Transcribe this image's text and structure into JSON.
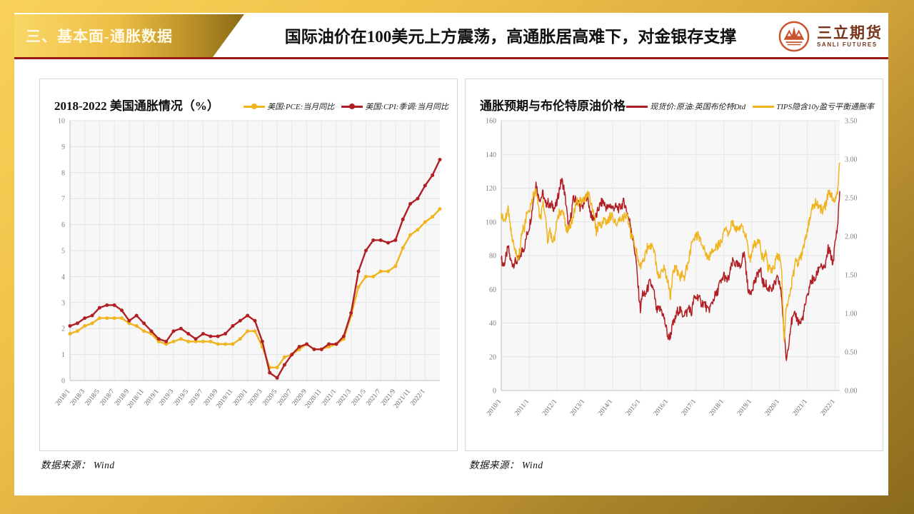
{
  "header": {
    "section_label": "三、基本面-通胀数据",
    "title": "国际油价在100美元上方震荡，高通胀居高难下，对金银存支撑",
    "logo": {
      "name_cn": "三立期货",
      "name_en": "SANLI FUTURES"
    }
  },
  "source_note": {
    "label": "数据来源：",
    "value": "Wind"
  },
  "colors": {
    "brand_gold": "#EFC04A",
    "banner_text": "#FFF9E4",
    "separator_red": "#9B1B13",
    "logo_orange": "#C8552C",
    "logo_text_brown": "#77341B",
    "series_gold": "#F0B41E",
    "series_red": "#B01F24",
    "plot_background": "#F7F7F7",
    "gridline": "#E2E2E2"
  },
  "chart_data": [
    {
      "type": "line",
      "title": "2018-2022 美国通胀情况（%）",
      "xlabel": "",
      "ylabel": "",
      "ylim": [
        0,
        10
      ],
      "ystep": 1,
      "y_decimals": 0,
      "grid": true,
      "legend_position": "top-right",
      "label_every": 2,
      "x_tick_labels": [
        "2018/1",
        "2018/3",
        "2018/5",
        "2018/7",
        "2018/9",
        "2018/11",
        "2019/1",
        "2019/3",
        "2019/5",
        "2019/7",
        "2019/9",
        "2019/11",
        "2020/1",
        "2020/3",
        "2020/5",
        "2020/7",
        "2020/9",
        "2020/11",
        "2021/1",
        "2021/3",
        "2021/5",
        "2021/7",
        "2021/9",
        "2021/11",
        "2022/1"
      ],
      "x_range_note": "monthly points 2018/1 - 2022/3",
      "series": [
        {
          "name": "美国:PCE:当月同比",
          "color": "#F0B41E",
          "marker": "circle",
          "values": [
            1.8,
            1.9,
            2.1,
            2.2,
            2.4,
            2.4,
            2.4,
            2.4,
            2.2,
            2.1,
            1.9,
            1.8,
            1.5,
            1.4,
            1.5,
            1.6,
            1.5,
            1.5,
            1.5,
            1.5,
            1.4,
            1.4,
            1.4,
            1.6,
            1.9,
            1.9,
            1.3,
            0.5,
            0.5,
            0.9,
            1.0,
            1.2,
            1.4,
            1.2,
            1.2,
            1.3,
            1.4,
            1.6,
            2.5,
            3.6,
            4.0,
            4.0,
            4.2,
            4.2,
            4.4,
            5.1,
            5.6,
            5.8,
            6.1,
            6.3,
            6.6
          ]
        },
        {
          "name": "美国:CPI:季调:当月同比",
          "color": "#B01F24",
          "marker": "circle",
          "values": [
            2.1,
            2.2,
            2.4,
            2.5,
            2.8,
            2.9,
            2.9,
            2.7,
            2.3,
            2.5,
            2.2,
            1.9,
            1.6,
            1.5,
            1.9,
            2.0,
            1.8,
            1.6,
            1.8,
            1.7,
            1.7,
            1.8,
            2.1,
            2.3,
            2.5,
            2.3,
            1.5,
            0.3,
            0.1,
            0.6,
            1.0,
            1.3,
            1.4,
            1.2,
            1.2,
            1.4,
            1.4,
            1.7,
            2.6,
            4.2,
            5.0,
            5.4,
            5.4,
            5.3,
            5.4,
            6.2,
            6.8,
            7.0,
            7.5,
            7.9,
            8.5
          ]
        }
      ]
    },
    {
      "type": "line",
      "title": "通胀预期与布伦特原油价格",
      "xlabel": "",
      "ylabel": "",
      "ylim_left": [
        0,
        160
      ],
      "ystep_left": 20,
      "y_decimals": 0,
      "ylim_right": [
        0,
        3.5
      ],
      "ystep_right": 0.5,
      "y2_decimals": 2,
      "grid": true,
      "legend_position": "top-right",
      "label_every": 12,
      "x_tick_labels": [
        "2010/1",
        "2011/1",
        "2012/1",
        "2013/1",
        "2014/1",
        "2015/1",
        "2016/1",
        "2017/1",
        "2018/1",
        "2019/1",
        "2020/1",
        "2021/1",
        "2022/1"
      ],
      "x_range_note": "monthly points 2010/1 - 2022/3",
      "series": [
        {
          "name": "现货价:原油:英国布伦特Dtd",
          "color": "#B01F24",
          "axis": "left",
          "values": [
            78,
            74,
            79,
            85,
            77,
            75,
            76,
            77,
            78,
            83,
            85,
            92,
            97,
            104,
            115,
            123,
            115,
            114,
            117,
            110,
            112,
            109,
            110,
            108,
            111,
            119,
            125,
            120,
            110,
            95,
            103,
            113,
            113,
            112,
            109,
            109,
            112,
            116,
            109,
            102,
            103,
            103,
            108,
            111,
            112,
            109,
            108,
            110,
            108,
            109,
            108,
            108,
            110,
            112,
            107,
            102,
            97,
            88,
            79,
            62,
            48,
            58,
            56,
            60,
            64,
            62,
            57,
            47,
            48,
            48,
            44,
            38,
            31,
            33,
            39,
            42,
            47,
            48,
            45,
            46,
            46,
            50,
            45,
            54,
            55,
            56,
            52,
            52,
            51,
            47,
            49,
            52,
            56,
            57,
            63,
            64,
            69,
            65,
            66,
            72,
            77,
            75,
            74,
            73,
            79,
            81,
            65,
            57,
            60,
            64,
            66,
            71,
            70,
            63,
            64,
            59,
            62,
            60,
            63,
            66,
            64,
            55,
            33,
            18,
            29,
            40,
            43,
            45,
            41,
            40,
            43,
            50,
            55,
            62,
            66,
            65,
            68,
            73,
            75,
            71,
            75,
            84,
            81,
            75,
            87,
            97,
            118
          ]
        },
        {
          "name": "TIPS隐含10y盈亏平衡通胀率",
          "color": "#F0B41E",
          "axis": "right",
          "values": [
            2.3,
            2.2,
            2.25,
            2.35,
            2.1,
            1.95,
            1.85,
            1.7,
            1.8,
            2.1,
            2.1,
            2.3,
            2.3,
            2.45,
            2.55,
            2.6,
            2.35,
            2.25,
            2.4,
            2.25,
            1.95,
            2.05,
            1.95,
            2.0,
            2.2,
            2.3,
            2.35,
            2.3,
            2.1,
            2.1,
            2.15,
            2.25,
            2.4,
            2.45,
            2.45,
            2.45,
            2.5,
            2.55,
            2.55,
            2.4,
            2.3,
            2.05,
            2.15,
            2.15,
            2.2,
            2.2,
            2.2,
            2.25,
            2.25,
            2.2,
            2.15,
            2.2,
            2.2,
            2.25,
            2.25,
            2.2,
            2.0,
            1.95,
            1.85,
            1.7,
            1.6,
            1.7,
            1.75,
            1.85,
            1.85,
            1.85,
            1.8,
            1.6,
            1.45,
            1.5,
            1.6,
            1.5,
            1.4,
            1.2,
            1.55,
            1.6,
            1.55,
            1.45,
            1.5,
            1.45,
            1.6,
            1.7,
            1.9,
            1.95,
            2.0,
            2.0,
            1.95,
            1.85,
            1.8,
            1.7,
            1.75,
            1.8,
            1.85,
            1.85,
            1.9,
            1.9,
            2.05,
            2.1,
            2.05,
            2.15,
            2.15,
            2.1,
            2.1,
            2.1,
            2.15,
            2.05,
            1.95,
            1.7,
            1.75,
            1.9,
            1.9,
            1.95,
            1.8,
            1.7,
            1.8,
            1.6,
            1.55,
            1.55,
            1.65,
            1.75,
            1.7,
            1.55,
            0.6,
            1.1,
            1.2,
            1.35,
            1.5,
            1.7,
            1.65,
            1.7,
            1.8,
            1.95,
            2.1,
            2.2,
            2.35,
            2.4,
            2.45,
            2.35,
            2.35,
            2.35,
            2.4,
            2.55,
            2.55,
            2.5,
            2.45,
            2.6,
            2.95
          ]
        }
      ]
    }
  ]
}
